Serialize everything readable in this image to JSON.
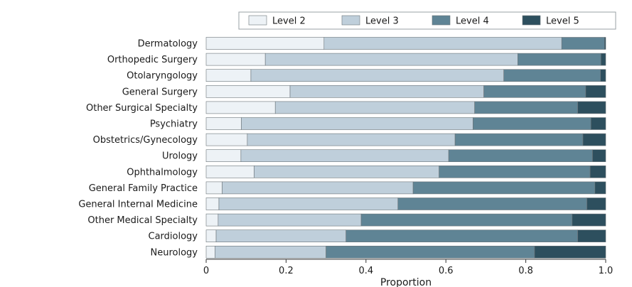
{
  "chart_data": {
    "type": "bar",
    "orientation": "horizontal",
    "stacked": true,
    "categories": [
      "Dermatology",
      "Orthopedic Surgery",
      "Otolaryngology",
      "General Surgery",
      "Other Surgical Specialty",
      "Psychiatry",
      "Obstetrics/Gynecology",
      "Urology",
      "Ophthalmology",
      "General Family Practice",
      "General Internal Medicine",
      "Other Medical Specialty",
      "Cardiology",
      "Neurology"
    ],
    "series": [
      {
        "name": "Level 2",
        "color": "#edf2f6",
        "values": [
          0.295,
          0.148,
          0.112,
          0.21,
          0.173,
          0.088,
          0.103,
          0.087,
          0.12,
          0.04,
          0.032,
          0.03,
          0.025,
          0.022
        ]
      },
      {
        "name": "Level 3",
        "color": "#bfcfdb",
        "values": [
          0.595,
          0.632,
          0.633,
          0.485,
          0.499,
          0.58,
          0.52,
          0.52,
          0.463,
          0.478,
          0.448,
          0.358,
          0.325,
          0.278
        ]
      },
      {
        "name": "Level 4",
        "color": "#5f8495",
        "values": [
          0.107,
          0.208,
          0.242,
          0.255,
          0.258,
          0.295,
          0.32,
          0.36,
          0.378,
          0.455,
          0.473,
          0.528,
          0.58,
          0.522
        ]
      },
      {
        "name": "Level 5",
        "color": "#2d4f5e",
        "values": [
          0.003,
          0.012,
          0.013,
          0.05,
          0.07,
          0.037,
          0.057,
          0.033,
          0.039,
          0.027,
          0.047,
          0.084,
          0.07,
          0.178
        ]
      }
    ],
    "xlabel": "Proportion",
    "ylabel": "",
    "title": "",
    "xlim": [
      0,
      1.0
    ],
    "xticks": [
      "0",
      "0.2",
      "0.4",
      "0.6",
      "0.8",
      "1.0"
    ],
    "grid": false,
    "legend_position": "top-right"
  }
}
